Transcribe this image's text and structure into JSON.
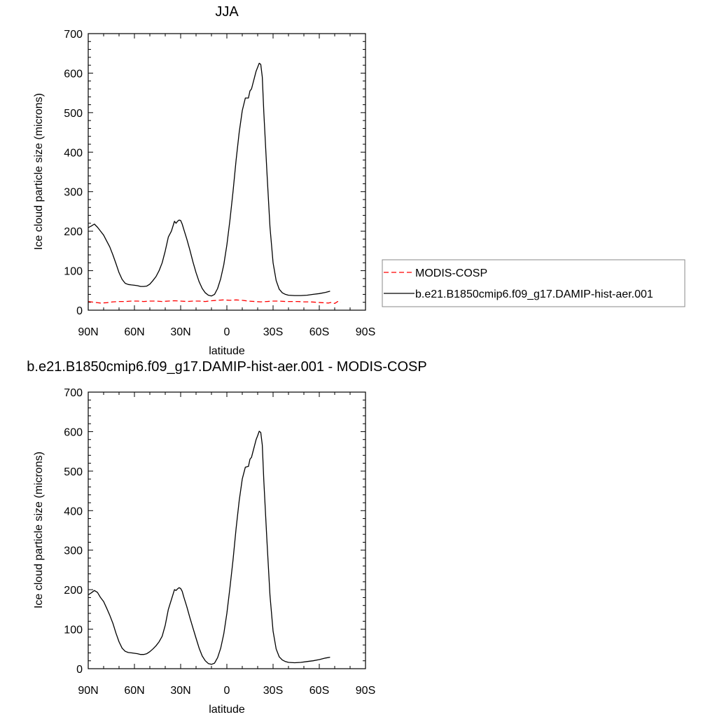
{
  "chart_data": [
    {
      "type": "line",
      "title": "JJA",
      "xlabel": "latitude",
      "ylabel": "Ice cloud particle size (microns)",
      "xlim": [
        90,
        -90
      ],
      "ylim": [
        0,
        700
      ],
      "x_ticks": [
        90,
        60,
        30,
        0,
        -30,
        -60,
        -90
      ],
      "x_tick_labels": [
        "90N",
        "60N",
        "30N",
        "0",
        "30S",
        "60S",
        "90S"
      ],
      "y_ticks": [
        0,
        100,
        200,
        300,
        400,
        500,
        600,
        700
      ],
      "y_tick_labels": [
        "0",
        "100",
        "200",
        "300",
        "400",
        "500",
        "600",
        "700"
      ],
      "grid": false,
      "legend_position": "right",
      "series": [
        {
          "name": "MODIS-COSP",
          "style": "dashed",
          "color": "#ff0000",
          "x": [
            90,
            86,
            82,
            78,
            74,
            70,
            66,
            62,
            58,
            54,
            50,
            46,
            42,
            38,
            34,
            30,
            26,
            22,
            18,
            14,
            10,
            6,
            2,
            -2,
            -6,
            -10,
            -14,
            -18,
            -22,
            -26,
            -30,
            -34,
            -38,
            -42,
            -46,
            -50,
            -54,
            -58,
            -62,
            -66,
            -68,
            -70,
            -72,
            -74
          ],
          "y": [
            22,
            20,
            18,
            19,
            21,
            22,
            22,
            23,
            23,
            22,
            23,
            23,
            22,
            23,
            24,
            23,
            22,
            23,
            23,
            22,
            24,
            25,
            26,
            25,
            26,
            25,
            23,
            22,
            21,
            22,
            23,
            23,
            22,
            22,
            22,
            21,
            21,
            20,
            19,
            18,
            20,
            17,
            22,
            20
          ]
        },
        {
          "name": "b.e21.B1850cmip6.f09_g17.DAMIP-hist-aer.001",
          "style": "solid",
          "color": "#000000",
          "x": [
            90,
            88,
            86,
            84,
            82,
            80,
            78,
            76,
            74,
            72,
            70,
            68,
            66,
            64,
            62,
            60,
            58,
            56,
            54,
            52,
            50,
            48,
            46,
            44,
            42,
            40,
            38,
            36,
            34,
            33,
            32,
            31,
            30,
            29,
            28,
            26,
            24,
            22,
            20,
            18,
            16,
            14,
            12,
            10,
            8,
            6,
            4,
            2,
            0,
            -2,
            -4,
            -6,
            -8,
            -10,
            -12,
            -14,
            -15,
            -16,
            -17,
            -18,
            -19,
            -20,
            -21,
            -22,
            -23,
            -24,
            -26,
            -28,
            -30,
            -32,
            -34,
            -36,
            -38,
            -40,
            -44,
            -48,
            -52,
            -56,
            -60,
            -64,
            -67
          ],
          "y": [
            209,
            213,
            218,
            210,
            200,
            190,
            175,
            160,
            140,
            118,
            95,
            78,
            68,
            65,
            64,
            63,
            62,
            60,
            60,
            61,
            66,
            75,
            85,
            100,
            120,
            150,
            185,
            200,
            225,
            220,
            225,
            228,
            227,
            218,
            205,
            180,
            152,
            122,
            95,
            72,
            55,
            44,
            38,
            36,
            40,
            55,
            80,
            115,
            165,
            228,
            300,
            380,
            450,
            505,
            537,
            537,
            555,
            560,
            575,
            590,
            605,
            615,
            625,
            622,
            590,
            500,
            350,
            210,
            120,
            75,
            53,
            44,
            40,
            38,
            37,
            37,
            38,
            40,
            42,
            45,
            48
          ]
        }
      ]
    },
    {
      "type": "line",
      "title": "b.e21.B1850cmip6.f09_g17.DAMIP-hist-aer.001 - MODIS-COSP",
      "xlabel": "latitude",
      "ylabel": "Ice cloud particle size (microns)",
      "xlim": [
        90,
        -90
      ],
      "ylim": [
        0,
        700
      ],
      "x_ticks": [
        90,
        60,
        30,
        0,
        -30,
        -60,
        -90
      ],
      "x_tick_labels": [
        "90N",
        "60N",
        "30N",
        "0",
        "30S",
        "60S",
        "90S"
      ],
      "y_ticks": [
        0,
        100,
        200,
        300,
        400,
        500,
        600,
        700
      ],
      "y_tick_labels": [
        "0",
        "100",
        "200",
        "300",
        "400",
        "500",
        "600",
        "700"
      ],
      "grid": false,
      "series": [
        {
          "style": "solid",
          "color": "#000000",
          "x": [
            90,
            88,
            86,
            84,
            82,
            80,
            78,
            76,
            74,
            72,
            70,
            68,
            66,
            64,
            62,
            60,
            58,
            56,
            54,
            52,
            50,
            48,
            46,
            44,
            42,
            40,
            38,
            36,
            34,
            33,
            32,
            31,
            30,
            29,
            28,
            26,
            24,
            22,
            20,
            18,
            16,
            14,
            12,
            10,
            8,
            6,
            4,
            2,
            0,
            -2,
            -4,
            -6,
            -8,
            -10,
            -12,
            -14,
            -15,
            -16,
            -17,
            -18,
            -19,
            -20,
            -21,
            -22,
            -23,
            -24,
            -26,
            -28,
            -30,
            -32,
            -34,
            -36,
            -38,
            -40,
            -44,
            -48,
            -52,
            -56,
            -60,
            -64,
            -67
          ],
          "y": [
            187,
            192,
            198,
            193,
            180,
            170,
            153,
            135,
            115,
            90,
            68,
            52,
            44,
            41,
            40,
            39,
            38,
            36,
            36,
            38,
            43,
            50,
            58,
            68,
            82,
            110,
            150,
            175,
            200,
            198,
            202,
            205,
            203,
            196,
            182,
            157,
            129,
            103,
            77,
            52,
            32,
            20,
            13,
            11,
            14,
            28,
            52,
            88,
            140,
            205,
            275,
            355,
            425,
            480,
            510,
            512,
            530,
            535,
            550,
            565,
            580,
            590,
            601,
            598,
            566,
            475,
            325,
            185,
            95,
            50,
            30,
            22,
            18,
            16,
            15,
            16,
            18,
            20,
            23,
            27,
            29
          ]
        }
      ]
    }
  ]
}
